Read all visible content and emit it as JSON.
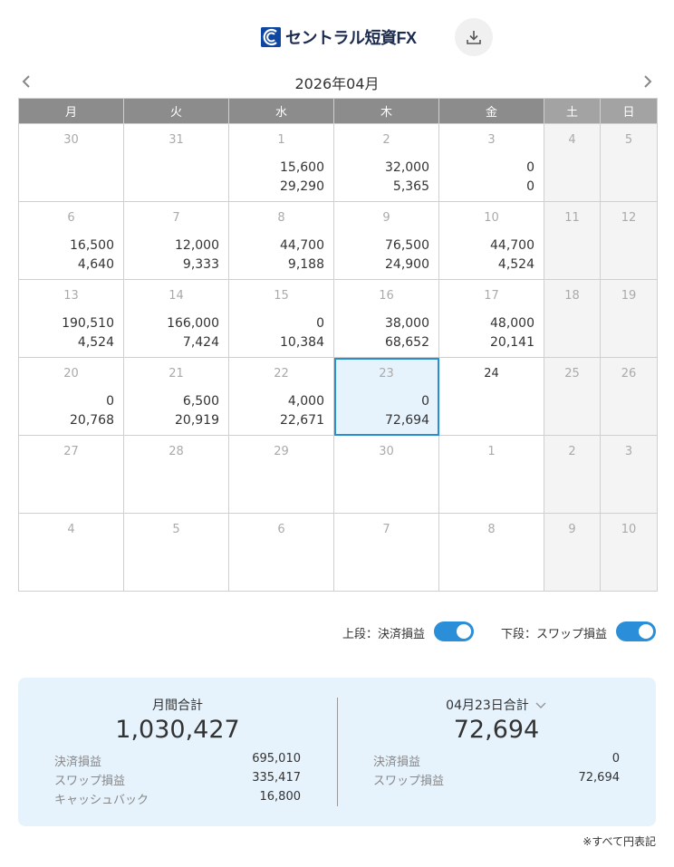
{
  "header": {
    "logo_text": "セントラル短資FX",
    "download_icon": "download-icon"
  },
  "calendar": {
    "month_title": "2026年04月",
    "weekdays": [
      "月",
      "火",
      "水",
      "木",
      "金",
      "土",
      "日"
    ],
    "weeks": [
      [
        {
          "day": "30",
          "current": false,
          "top": "",
          "bottom": ""
        },
        {
          "day": "31",
          "current": false,
          "top": "",
          "bottom": ""
        },
        {
          "day": "1",
          "current": false,
          "top": "15,600",
          "bottom": "29,290"
        },
        {
          "day": "2",
          "current": false,
          "top": "32,000",
          "bottom": "5,365"
        },
        {
          "day": "3",
          "current": false,
          "top": "0",
          "bottom": "0"
        },
        {
          "day": "4",
          "current": false,
          "top": "",
          "bottom": ""
        },
        {
          "day": "5",
          "current": false,
          "top": "",
          "bottom": ""
        }
      ],
      [
        {
          "day": "6",
          "current": false,
          "top": "16,500",
          "bottom": "4,640"
        },
        {
          "day": "7",
          "current": false,
          "top": "12,000",
          "bottom": "9,333"
        },
        {
          "day": "8",
          "current": false,
          "top": "44,700",
          "bottom": "9,188"
        },
        {
          "day": "9",
          "current": false,
          "top": "76,500",
          "bottom": "24,900"
        },
        {
          "day": "10",
          "current": false,
          "top": "44,700",
          "bottom": "4,524"
        },
        {
          "day": "11",
          "current": false,
          "top": "",
          "bottom": ""
        },
        {
          "day": "12",
          "current": false,
          "top": "",
          "bottom": ""
        }
      ],
      [
        {
          "day": "13",
          "current": false,
          "top": "190,510",
          "bottom": "4,524"
        },
        {
          "day": "14",
          "current": false,
          "top": "166,000",
          "bottom": "7,424"
        },
        {
          "day": "15",
          "current": false,
          "top": "0",
          "bottom": "10,384"
        },
        {
          "day": "16",
          "current": false,
          "top": "38,000",
          "bottom": "68,652"
        },
        {
          "day": "17",
          "current": false,
          "top": "48,000",
          "bottom": "20,141"
        },
        {
          "day": "18",
          "current": false,
          "top": "",
          "bottom": ""
        },
        {
          "day": "19",
          "current": false,
          "top": "",
          "bottom": ""
        }
      ],
      [
        {
          "day": "20",
          "current": false,
          "top": "0",
          "bottom": "20,768"
        },
        {
          "day": "21",
          "current": false,
          "top": "6,500",
          "bottom": "20,919"
        },
        {
          "day": "22",
          "current": false,
          "top": "4,000",
          "bottom": "22,671"
        },
        {
          "day": "23",
          "current": false,
          "top": "0",
          "bottom": "72,694",
          "selected": true
        },
        {
          "day": "24",
          "current": true,
          "top": "",
          "bottom": ""
        },
        {
          "day": "25",
          "current": false,
          "top": "",
          "bottom": ""
        },
        {
          "day": "26",
          "current": false,
          "top": "",
          "bottom": ""
        }
      ],
      [
        {
          "day": "27",
          "current": false,
          "top": "",
          "bottom": ""
        },
        {
          "day": "28",
          "current": false,
          "top": "",
          "bottom": ""
        },
        {
          "day": "29",
          "current": false,
          "top": "",
          "bottom": ""
        },
        {
          "day": "30",
          "current": false,
          "top": "",
          "bottom": ""
        },
        {
          "day": "1",
          "current": false,
          "top": "",
          "bottom": ""
        },
        {
          "day": "2",
          "current": false,
          "top": "",
          "bottom": ""
        },
        {
          "day": "3",
          "current": false,
          "top": "",
          "bottom": ""
        }
      ],
      [
        {
          "day": "4",
          "current": false,
          "top": "",
          "bottom": ""
        },
        {
          "day": "5",
          "current": false,
          "top": "",
          "bottom": ""
        },
        {
          "day": "6",
          "current": false,
          "top": "",
          "bottom": ""
        },
        {
          "day": "7",
          "current": false,
          "top": "",
          "bottom": ""
        },
        {
          "day": "8",
          "current": false,
          "top": "",
          "bottom": ""
        },
        {
          "day": "9",
          "current": false,
          "top": "",
          "bottom": ""
        },
        {
          "day": "10",
          "current": false,
          "top": "",
          "bottom": ""
        }
      ]
    ]
  },
  "toggles": {
    "upper_label": "上段：決済損益",
    "upper_on": true,
    "lower_label": "下段：スワップ損益",
    "lower_on": true
  },
  "summary": {
    "monthly": {
      "title": "月間合計",
      "total": "1,030,427",
      "rows": [
        {
          "label": "決済損益",
          "value": "695,010"
        },
        {
          "label": "スワップ損益",
          "value": "335,417"
        },
        {
          "label": "キャッシュバック",
          "value": "16,800"
        }
      ]
    },
    "daily": {
      "title": "04月23日合計",
      "total": "72,694",
      "rows": [
        {
          "label": "決済損益",
          "value": "0"
        },
        {
          "label": "スワップ損益",
          "value": "72,694"
        }
      ]
    }
  },
  "footnote": "※すべて円表記",
  "colors": {
    "accent": "#2a8fd8",
    "header_bg": "#8c8c8c",
    "selected_bg": "#e6f3fc",
    "selected_border": "#2a8fcf"
  }
}
